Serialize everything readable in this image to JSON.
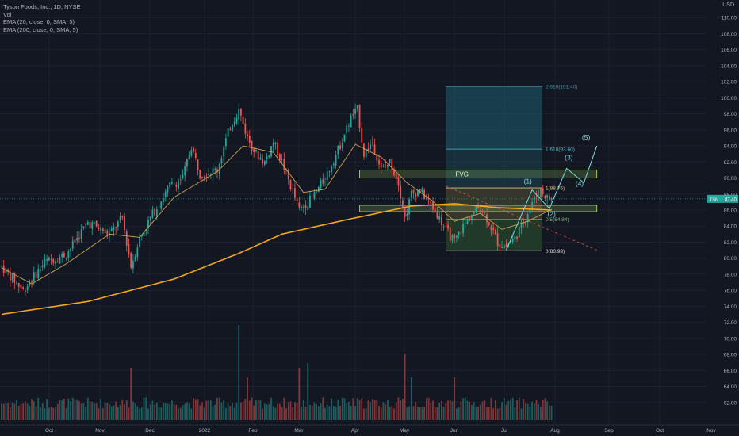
{
  "header": {
    "symbol_line": "Tyson Foods, Inc., 1D, NYSE",
    "volume_label": "Vol",
    "ema20_label": "EMA (20, close, 0, SMA, 5)",
    "ema200_label": "EMA (200, close, 0, SMA, 5)",
    "currency": "USD"
  },
  "colors": {
    "background": "#131722",
    "up": "#26a69a",
    "down": "#ef5350",
    "ema20": "#c9a556",
    "ema200": "#f5a623",
    "fvg": "#b5e86c",
    "fib_top": "#1f5f6e",
    "fib_mid": "#3b3a2e",
    "fib_bottom": "#233d2a",
    "wave": "#7fdbe0",
    "axis_text": "#b2b5be",
    "last_price_bg": "#26a69a",
    "trend_dash": "#ef5350"
  },
  "chart_data": {
    "type": "candlestick",
    "symbol": "TSN",
    "timeframe": "1D",
    "exchange": "NYSE",
    "last_price": 87.4,
    "last_price_label": "87.40",
    "ylim": [
      60.0,
      112.0
    ],
    "y_ticks": [
      "110.00",
      "108.00",
      "106.00",
      "104.00",
      "102.00",
      "100.00",
      "98.00",
      "96.00",
      "94.00",
      "92.00",
      "90.00",
      "88.00",
      "86.00",
      "84.00",
      "82.00",
      "80.00",
      "78.00",
      "76.00",
      "74.00",
      "72.00",
      "70.00",
      "68.00",
      "66.00",
      "64.00",
      "62.00"
    ],
    "x_ticks": [
      "Oct",
      "Nov",
      "Dec",
      "2022",
      "Feb",
      "Mar",
      "Apr",
      "May",
      "Jun",
      "Jul",
      "Aug",
      "Sep",
      "Oct",
      "Nov"
    ],
    "anchors": [
      {
        "d": 0,
        "p": 79.0
      },
      {
        "d": 10,
        "p": 76.0
      },
      {
        "d": 20,
        "p": 79.5
      },
      {
        "d": 30,
        "p": 80.5
      },
      {
        "d": 40,
        "p": 84.5
      },
      {
        "d": 50,
        "p": 83.0
      },
      {
        "d": 56,
        "p": 85.0
      },
      {
        "d": 60,
        "p": 79.0
      },
      {
        "d": 64,
        "p": 82.5
      },
      {
        "d": 70,
        "p": 85.5
      },
      {
        "d": 78,
        "p": 89.0
      },
      {
        "d": 84,
        "p": 90.0
      },
      {
        "d": 88,
        "p": 94.0
      },
      {
        "d": 92,
        "p": 90.5
      },
      {
        "d": 100,
        "p": 91.0
      },
      {
        "d": 106,
        "p": 96.5
      },
      {
        "d": 110,
        "p": 98.5
      },
      {
        "d": 114,
        "p": 95.0
      },
      {
        "d": 118,
        "p": 93.0
      },
      {
        "d": 122,
        "p": 92.0
      },
      {
        "d": 126,
        "p": 94.5
      },
      {
        "d": 130,
        "p": 92.0
      },
      {
        "d": 134,
        "p": 89.0
      },
      {
        "d": 138,
        "p": 86.0
      },
      {
        "d": 144,
        "p": 87.5
      },
      {
        "d": 150,
        "p": 90.0
      },
      {
        "d": 156,
        "p": 93.5
      },
      {
        "d": 162,
        "p": 97.5
      },
      {
        "d": 165,
        "p": 98.5
      },
      {
        "d": 168,
        "p": 93.0
      },
      {
        "d": 172,
        "p": 94.5
      },
      {
        "d": 176,
        "p": 91.0
      },
      {
        "d": 180,
        "p": 92.0
      },
      {
        "d": 184,
        "p": 89.5
      },
      {
        "d": 187,
        "p": 85.0
      },
      {
        "d": 190,
        "p": 88.0
      },
      {
        "d": 194,
        "p": 88.5
      },
      {
        "d": 198,
        "p": 87.0
      },
      {
        "d": 202,
        "p": 85.5
      },
      {
        "d": 206,
        "p": 83.5
      },
      {
        "d": 210,
        "p": 82.0
      },
      {
        "d": 214,
        "p": 84.0
      },
      {
        "d": 218,
        "p": 85.5
      },
      {
        "d": 222,
        "p": 86.5
      },
      {
        "d": 226,
        "p": 84.5
      },
      {
        "d": 230,
        "p": 82.0
      },
      {
        "d": 234,
        "p": 81.5
      },
      {
        "d": 238,
        "p": 82.5
      },
      {
        "d": 242,
        "p": 84.5
      },
      {
        "d": 246,
        "p": 87.0
      },
      {
        "d": 250,
        "p": 88.5
      },
      {
        "d": 253,
        "p": 87.5
      },
      {
        "d": 255,
        "p": 87.4
      }
    ],
    "volume_spikes": [
      {
        "d": 60,
        "v": 0.55
      },
      {
        "d": 110,
        "v": 1.0
      },
      {
        "d": 114,
        "v": 0.45
      },
      {
        "d": 138,
        "v": 0.55
      },
      {
        "d": 142,
        "v": 0.6
      },
      {
        "d": 187,
        "v": 0.7
      },
      {
        "d": 190,
        "v": 0.45
      },
      {
        "d": 210,
        "v": 0.45
      }
    ],
    "ema20_anchors": [
      {
        "d": 0,
        "p": 78.8
      },
      {
        "d": 14,
        "p": 76.8
      },
      {
        "d": 30,
        "p": 79.3
      },
      {
        "d": 50,
        "p": 83.0
      },
      {
        "d": 64,
        "p": 82.6
      },
      {
        "d": 80,
        "p": 87.6
      },
      {
        "d": 100,
        "p": 90.8
      },
      {
        "d": 112,
        "p": 94.0
      },
      {
        "d": 126,
        "p": 93.2
      },
      {
        "d": 140,
        "p": 88.2
      },
      {
        "d": 150,
        "p": 88.6
      },
      {
        "d": 164,
        "p": 94.2
      },
      {
        "d": 176,
        "p": 92.6
      },
      {
        "d": 188,
        "p": 89.4
      },
      {
        "d": 200,
        "p": 87.1
      },
      {
        "d": 210,
        "p": 84.6
      },
      {
        "d": 222,
        "p": 85.6
      },
      {
        "d": 232,
        "p": 83.6
      },
      {
        "d": 244,
        "p": 84.6
      },
      {
        "d": 255,
        "p": 86.1
      }
    ],
    "ema200_anchors": [
      {
        "d": 0,
        "p": 73.0
      },
      {
        "d": 40,
        "p": 74.6
      },
      {
        "d": 80,
        "p": 77.4
      },
      {
        "d": 110,
        "p": 80.6
      },
      {
        "d": 130,
        "p": 83.0
      },
      {
        "d": 160,
        "p": 84.8
      },
      {
        "d": 190,
        "p": 86.5
      },
      {
        "d": 210,
        "p": 86.8
      },
      {
        "d": 230,
        "p": 86.3
      },
      {
        "d": 255,
        "p": 86.0
      }
    ],
    "fib": {
      "d_start": 206,
      "d_end": 250,
      "levels": [
        {
          "label": "2.618(101.40)",
          "price": 101.4
        },
        {
          "label": "1.618(93.60)",
          "price": 93.6
        },
        {
          "label": "1(88.76)",
          "price": 88.76
        },
        {
          "label": "0.5(84.84)",
          "price": 84.84
        },
        {
          "label": "0(80.93)",
          "price": 80.93
        }
      ]
    },
    "fvg_zones": [
      {
        "label": "FVG",
        "d_start": 166,
        "d_end": 276,
        "p_low": 90.0,
        "p_high": 91.0
      },
      {
        "label": "",
        "d_start": 166,
        "d_end": 276,
        "p_low": 85.8,
        "p_high": 86.6
      }
    ],
    "waves": {
      "path": [
        {
          "d": 234,
          "p": 81.0
        },
        {
          "d": 246,
          "p": 88.5
        },
        {
          "d": 254,
          "p": 86.2
        },
        {
          "d": 262,
          "p": 91.2
        },
        {
          "d": 270,
          "p": 89.4
        },
        {
          "d": 276,
          "p": 94.0
        }
      ],
      "labels": [
        {
          "text": "(1)",
          "d": 244,
          "p": 89.3
        },
        {
          "text": "(2)",
          "d": 255,
          "p": 85.2
        },
        {
          "text": "(3)",
          "d": 263,
          "p": 92.3
        },
        {
          "text": "(4)",
          "d": 268,
          "p": 89.0
        },
        {
          "text": "(5)",
          "d": 271,
          "p": 94.8
        }
      ]
    },
    "trendline": {
      "d1": 206,
      "p1": 89.0,
      "d2": 276,
      "p2": 81.0
    }
  }
}
